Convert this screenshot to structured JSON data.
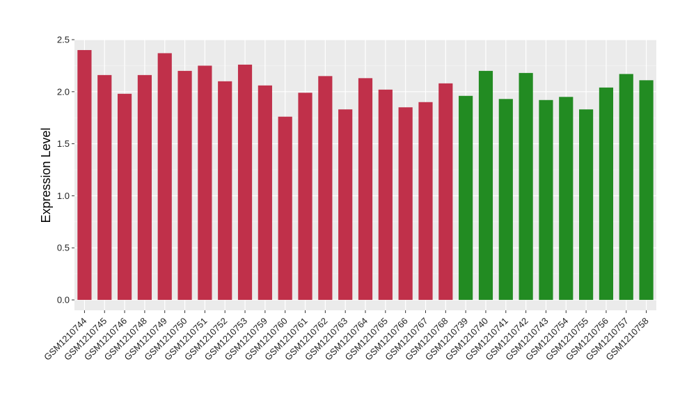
{
  "chart_data": {
    "type": "bar",
    "ylabel": "Expression Level",
    "xlabel": "",
    "title": "",
    "ylim": [
      -0.1,
      2.5
    ],
    "yticks": [
      "0.0",
      "0.5",
      "1.0",
      "1.5",
      "2.0",
      "2.5"
    ],
    "grid": true,
    "legend": "none",
    "colors": {
      "group_red": "#c0304a",
      "group_green": "#228b22",
      "panel_bg": "#ebebeb",
      "grid": "#ffffff"
    },
    "categories": [
      "GSM1210744",
      "GSM1210745",
      "GSM1210746",
      "GSM1210748",
      "GSM1210749",
      "GSM1210750",
      "GSM1210751",
      "GSM1210752",
      "GSM1210753",
      "GSM1210759",
      "GSM1210760",
      "GSM1210761",
      "GSM1210762",
      "GSM1210763",
      "GSM1210764",
      "GSM1210765",
      "GSM1210766",
      "GSM1210767",
      "GSM1210768",
      "GSM1210739",
      "GSM1210740",
      "GSM1210741",
      "GSM1210742",
      "GSM1210743",
      "GSM1210754",
      "GSM1210755",
      "GSM1210756",
      "GSM1210757",
      "GSM1210758"
    ],
    "values": [
      2.4,
      2.16,
      1.98,
      2.16,
      2.37,
      2.2,
      2.25,
      2.1,
      2.26,
      2.06,
      1.76,
      1.99,
      2.15,
      1.83,
      2.13,
      2.02,
      1.85,
      1.9,
      2.08,
      1.96,
      2.2,
      1.93,
      2.18,
      1.92,
      1.95,
      1.83,
      2.04,
      2.17,
      2.11
    ],
    "bar_colors": [
      "#c0304a",
      "#c0304a",
      "#c0304a",
      "#c0304a",
      "#c0304a",
      "#c0304a",
      "#c0304a",
      "#c0304a",
      "#c0304a",
      "#c0304a",
      "#c0304a",
      "#c0304a",
      "#c0304a",
      "#c0304a",
      "#c0304a",
      "#c0304a",
      "#c0304a",
      "#c0304a",
      "#c0304a",
      "#228b22",
      "#228b22",
      "#228b22",
      "#228b22",
      "#228b22",
      "#228b22",
      "#228b22",
      "#228b22",
      "#228b22",
      "#228b22"
    ]
  }
}
